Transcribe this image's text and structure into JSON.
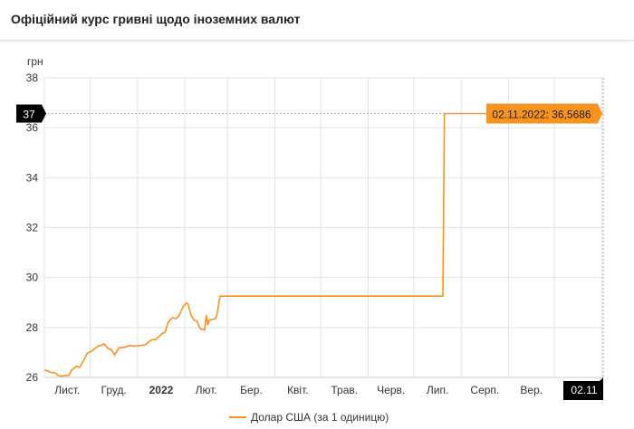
{
  "header": {
    "title": "Офіційний курс гривні щодо іноземних валют"
  },
  "chart_data": {
    "type": "line",
    "title": "",
    "ylabel": "грн",
    "xlabel": "",
    "ylim": [
      26,
      38
    ],
    "xlim": [
      "2021-11-01",
      "2022-11-02"
    ],
    "yticks": [
      26,
      28,
      30,
      32,
      34,
      36,
      38
    ],
    "xtick_labels": [
      "Лист.",
      "Груд.",
      "2022",
      "Лют.",
      "Бер.",
      "Квіт.",
      "Трав.",
      "Черв.",
      "Лип.",
      "Серп.",
      "Вер."
    ],
    "grid": true,
    "legend_position": "bottom",
    "series": [
      {
        "name": "Долар США (за 1 одиницю)",
        "color": "#f7931e",
        "points": [
          [
            "2021-11-01",
            26.29
          ],
          [
            "2021-11-03",
            26.27
          ],
          [
            "2021-11-05",
            26.2
          ],
          [
            "2021-11-08",
            26.18
          ],
          [
            "2021-11-10",
            26.08
          ],
          [
            "2021-11-12",
            26.05
          ],
          [
            "2021-11-15",
            26.07
          ],
          [
            "2021-11-17",
            26.08
          ],
          [
            "2021-11-19",
            26.3
          ],
          [
            "2021-11-22",
            26.45
          ],
          [
            "2021-11-24",
            26.4
          ],
          [
            "2021-11-26",
            26.6
          ],
          [
            "2021-11-29",
            26.95
          ],
          [
            "2021-11-30",
            27.0
          ],
          [
            "2021-12-02",
            27.05
          ],
          [
            "2021-12-06",
            27.25
          ],
          [
            "2021-12-09",
            27.3
          ],
          [
            "2021-12-10",
            27.35
          ],
          [
            "2021-12-13",
            27.15
          ],
          [
            "2021-12-15",
            27.1
          ],
          [
            "2021-12-17",
            26.9
          ],
          [
            "2021-12-20",
            27.2
          ],
          [
            "2021-12-23",
            27.2
          ],
          [
            "2021-12-27",
            27.28
          ],
          [
            "2021-12-30",
            27.25
          ],
          [
            "2022-01-03",
            27.28
          ],
          [
            "2022-01-06",
            27.3
          ],
          [
            "2022-01-10",
            27.5
          ],
          [
            "2022-01-13",
            27.52
          ],
          [
            "2022-01-17",
            27.75
          ],
          [
            "2022-01-19",
            27.8
          ],
          [
            "2022-01-21",
            28.2
          ],
          [
            "2022-01-24",
            28.4
          ],
          [
            "2022-01-26",
            28.35
          ],
          [
            "2022-01-28",
            28.45
          ],
          [
            "2022-01-31",
            28.85
          ],
          [
            "2022-02-02",
            28.98
          ],
          [
            "2022-02-03",
            28.95
          ],
          [
            "2022-02-05",
            28.5
          ],
          [
            "2022-02-07",
            28.3
          ],
          [
            "2022-02-09",
            28.25
          ],
          [
            "2022-02-11",
            27.95
          ],
          [
            "2022-02-14",
            27.9
          ],
          [
            "2022-02-15",
            28.5
          ],
          [
            "2022-02-16",
            28.1
          ],
          [
            "2022-02-17",
            28.3
          ],
          [
            "2022-02-21",
            28.35
          ],
          [
            "2022-02-22",
            28.5
          ],
          [
            "2022-02-24",
            29.2549
          ],
          [
            "2022-07-20",
            29.2549
          ],
          [
            "2022-07-21",
            36.5686
          ],
          [
            "2022-11-02",
            36.5686
          ]
        ]
      }
    ],
    "crosshair": {
      "y_label": "37",
      "x_label": "02.11",
      "tooltip": "02.11.2022: 36,5686"
    }
  }
}
